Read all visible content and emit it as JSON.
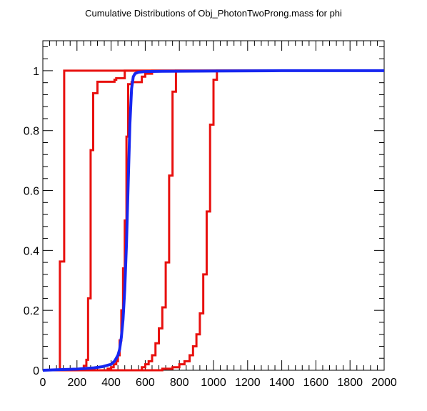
{
  "chart_data": {
    "type": "line",
    "title": "Cumulative Distributions of Obj_PhotonTwoProng.mass for phi",
    "xlabel": "",
    "ylabel": "",
    "xlim": [
      0,
      2000
    ],
    "ylim": [
      0,
      1.1
    ],
    "x_ticks": [
      0,
      200,
      400,
      600,
      800,
      1000,
      1200,
      1400,
      1600,
      1800,
      2000
    ],
    "y_ticks": [
      0,
      0.2,
      0.4,
      0.6,
      0.8,
      1
    ],
    "grid": false,
    "colors": {
      "signal": "#e8100e",
      "background": "#1626f0"
    },
    "series": [
      {
        "color": "#e8100e",
        "style": "step",
        "x": [
          0,
          100,
          100,
          125,
          125,
          2000
        ],
        "y": [
          0,
          0,
          0.363,
          0.363,
          1.0,
          1.0
        ]
      },
      {
        "color": "#e8100e",
        "style": "step",
        "x": [
          0,
          240,
          240,
          255,
          255,
          265,
          265,
          280,
          280,
          295,
          295,
          320,
          320,
          420,
          420,
          430,
          430,
          480,
          480,
          2000
        ],
        "y": [
          0,
          0,
          0.015,
          0.015,
          0.035,
          0.035,
          0.24,
          0.24,
          0.735,
          0.735,
          0.925,
          0.925,
          0.963,
          0.963,
          0.97,
          0.97,
          0.975,
          0.975,
          1.0,
          1.0
        ]
      },
      {
        "color": "#e8100e",
        "style": "step",
        "x": [
          0,
          380,
          380,
          400,
          400,
          415,
          415,
          430,
          430,
          440,
          440,
          450,
          450,
          460,
          460,
          470,
          470,
          480,
          480,
          490,
          490,
          500,
          500,
          520,
          520,
          580,
          580,
          600,
          600,
          640,
          640,
          2000
        ],
        "y": [
          0,
          0,
          0.005,
          0.005,
          0.01,
          0.01,
          0.02,
          0.02,
          0.03,
          0.03,
          0.05,
          0.05,
          0.1,
          0.1,
          0.2,
          0.2,
          0.34,
          0.34,
          0.5,
          0.5,
          0.78,
          0.78,
          0.955,
          0.955,
          0.962,
          0.962,
          0.98,
          0.98,
          0.99,
          0.99,
          1.0,
          1.0
        ]
      },
      {
        "color": "#e8100e",
        "style": "step",
        "x": [
          0,
          580,
          580,
          600,
          600,
          620,
          620,
          640,
          640,
          660,
          660,
          680,
          680,
          700,
          700,
          720,
          720,
          740,
          740,
          760,
          760,
          780,
          780,
          2000
        ],
        "y": [
          0,
          0,
          0.01,
          0.01,
          0.02,
          0.02,
          0.03,
          0.03,
          0.05,
          0.05,
          0.09,
          0.09,
          0.14,
          0.14,
          0.21,
          0.21,
          0.36,
          0.36,
          0.65,
          0.65,
          0.93,
          0.93,
          1.0,
          1.0
        ]
      },
      {
        "color": "#e8100e",
        "style": "step",
        "x": [
          0,
          700,
          700,
          760,
          760,
          800,
          800,
          830,
          830,
          860,
          860,
          880,
          880,
          900,
          900,
          920,
          920,
          940,
          940,
          960,
          960,
          980,
          980,
          1000,
          1000,
          1020,
          1020,
          2000
        ],
        "y": [
          0,
          0,
          0.005,
          0.005,
          0.01,
          0.01,
          0.02,
          0.02,
          0.03,
          0.03,
          0.05,
          0.05,
          0.08,
          0.08,
          0.12,
          0.12,
          0.19,
          0.19,
          0.32,
          0.32,
          0.53,
          0.53,
          0.82,
          0.82,
          0.97,
          0.97,
          1.0,
          1.0
        ]
      },
      {
        "color": "#1626f0",
        "style": "smooth",
        "x": [
          0,
          100,
          200,
          300,
          350,
          400,
          420,
          440,
          450,
          460,
          470,
          480,
          490,
          500,
          510,
          520,
          530,
          540,
          560,
          600,
          700,
          1000,
          1400,
          2000
        ],
        "y": [
          0,
          0.002,
          0.004,
          0.008,
          0.012,
          0.02,
          0.03,
          0.05,
          0.07,
          0.11,
          0.17,
          0.27,
          0.42,
          0.62,
          0.82,
          0.94,
          0.98,
          0.99,
          0.995,
          0.997,
          0.998,
          0.999,
          1.0,
          1.0
        ]
      }
    ]
  }
}
